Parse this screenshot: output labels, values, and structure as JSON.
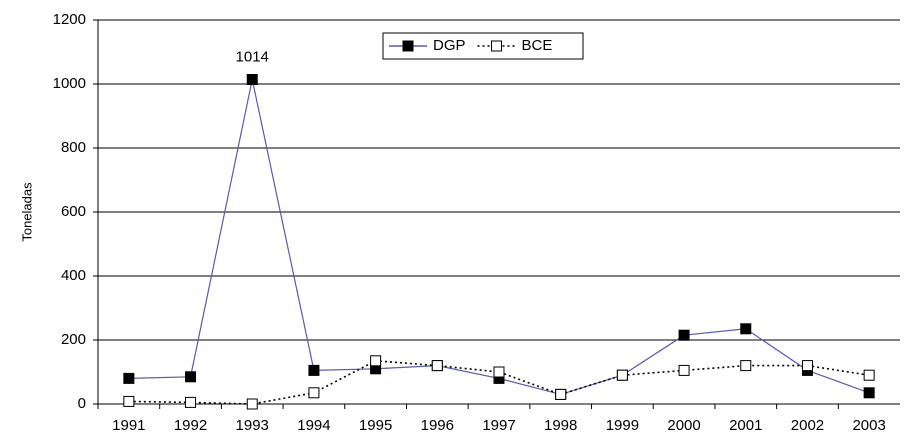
{
  "chart_data": {
    "type": "line",
    "y_label": "Toneladas",
    "categories": [
      "1991",
      "1992",
      "1993",
      "1994",
      "1995",
      "1996",
      "1997",
      "1998",
      "1999",
      "2000",
      "2001",
      "2002",
      "2003"
    ],
    "series": [
      {
        "name": "DGP",
        "color": "#5a5aa8",
        "marker_color": "#000000",
        "marker_fill": "#000000",
        "line_style": "solid",
        "values": [
          80,
          85,
          1014,
          105,
          110,
          120,
          80,
          30,
          90,
          215,
          235,
          105,
          35
        ],
        "value_labels": [
          null,
          null,
          "1014",
          null,
          null,
          null,
          null,
          null,
          null,
          null,
          null,
          null,
          null
        ]
      },
      {
        "name": "BCE",
        "color": "#000000",
        "marker_color": "#000000",
        "marker_fill": "#ffffff",
        "line_style": "dotted",
        "values": [
          8,
          5,
          0,
          35,
          135,
          120,
          100,
          30,
          90,
          105,
          120,
          120,
          90
        ]
      }
    ],
    "ylim": [
      0,
      1200
    ],
    "yticks": [
      0,
      200,
      400,
      600,
      800,
      1000,
      1200
    ],
    "grid": true,
    "legend": "top"
  }
}
